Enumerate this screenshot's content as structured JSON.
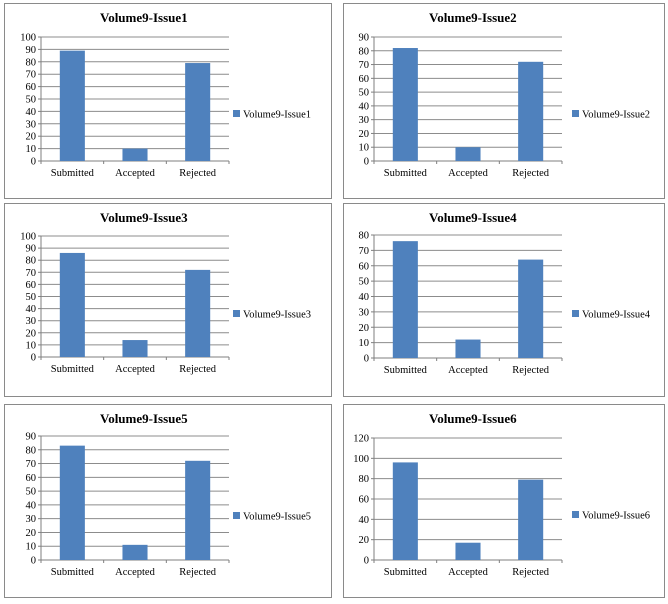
{
  "colors": {
    "bar": "#4f81bd",
    "grid": "#8c8c8c",
    "axis": "#7f7f7f"
  },
  "chart_data": [
    {
      "type": "bar",
      "title": "Volume9-Issue1",
      "categories": [
        "Submitted",
        "Accepted",
        "Rejected"
      ],
      "series": [
        {
          "name": "Volume9-Issue1",
          "values": [
            89,
            10,
            79
          ]
        }
      ],
      "ylim": [
        0,
        100
      ],
      "yticks": [
        0,
        10,
        20,
        30,
        40,
        50,
        60,
        70,
        80,
        90,
        100
      ],
      "grid": true,
      "legend": "right"
    },
    {
      "type": "bar",
      "title": "Volume9-Issue2",
      "categories": [
        "Submitted",
        "Accepted",
        "Rejected"
      ],
      "series": [
        {
          "name": "Volume9-Issue2",
          "values": [
            82,
            10,
            72
          ]
        }
      ],
      "ylim": [
        0,
        90
      ],
      "yticks": [
        0,
        10,
        20,
        30,
        40,
        50,
        60,
        70,
        80,
        90
      ],
      "grid": true,
      "legend": "right"
    },
    {
      "type": "bar",
      "title": "Volume9-Issue3",
      "categories": [
        "Submitted",
        "Accepted",
        "Rejected"
      ],
      "series": [
        {
          "name": "Volume9-Issue3",
          "values": [
            86,
            14,
            72
          ]
        }
      ],
      "ylim": [
        0,
        100
      ],
      "yticks": [
        0,
        10,
        20,
        30,
        40,
        50,
        60,
        70,
        80,
        90,
        100
      ],
      "grid": true,
      "legend": "right"
    },
    {
      "type": "bar",
      "title": "Volume9-Issue4",
      "categories": [
        "Submitted",
        "Accepted",
        "Rejected"
      ],
      "series": [
        {
          "name": "Volume9-Issue4",
          "values": [
            76,
            12,
            64
          ]
        }
      ],
      "ylim": [
        0,
        80
      ],
      "yticks": [
        0,
        10,
        20,
        30,
        40,
        50,
        60,
        70,
        80
      ],
      "grid": true,
      "legend": "right"
    },
    {
      "type": "bar",
      "title": "Volume9-Issue5",
      "categories": [
        "Submitted",
        "Accepted",
        "Rejected"
      ],
      "series": [
        {
          "name": "Volume9-Issue5",
          "values": [
            83,
            11,
            72
          ]
        }
      ],
      "ylim": [
        0,
        90
      ],
      "yticks": [
        0,
        10,
        20,
        30,
        40,
        50,
        60,
        70,
        80,
        90
      ],
      "grid": true,
      "legend": "right"
    },
    {
      "type": "bar",
      "title": "Volume9-Issue6",
      "categories": [
        "Submitted",
        "Accepted",
        "Rejected"
      ],
      "series": [
        {
          "name": "Volume9-Issue6",
          "values": [
            96,
            17,
            79
          ]
        }
      ],
      "ylim": [
        0,
        120
      ],
      "yticks": [
        0,
        20,
        40,
        60,
        80,
        100,
        120
      ],
      "grid": true,
      "legend": "right"
    }
  ]
}
